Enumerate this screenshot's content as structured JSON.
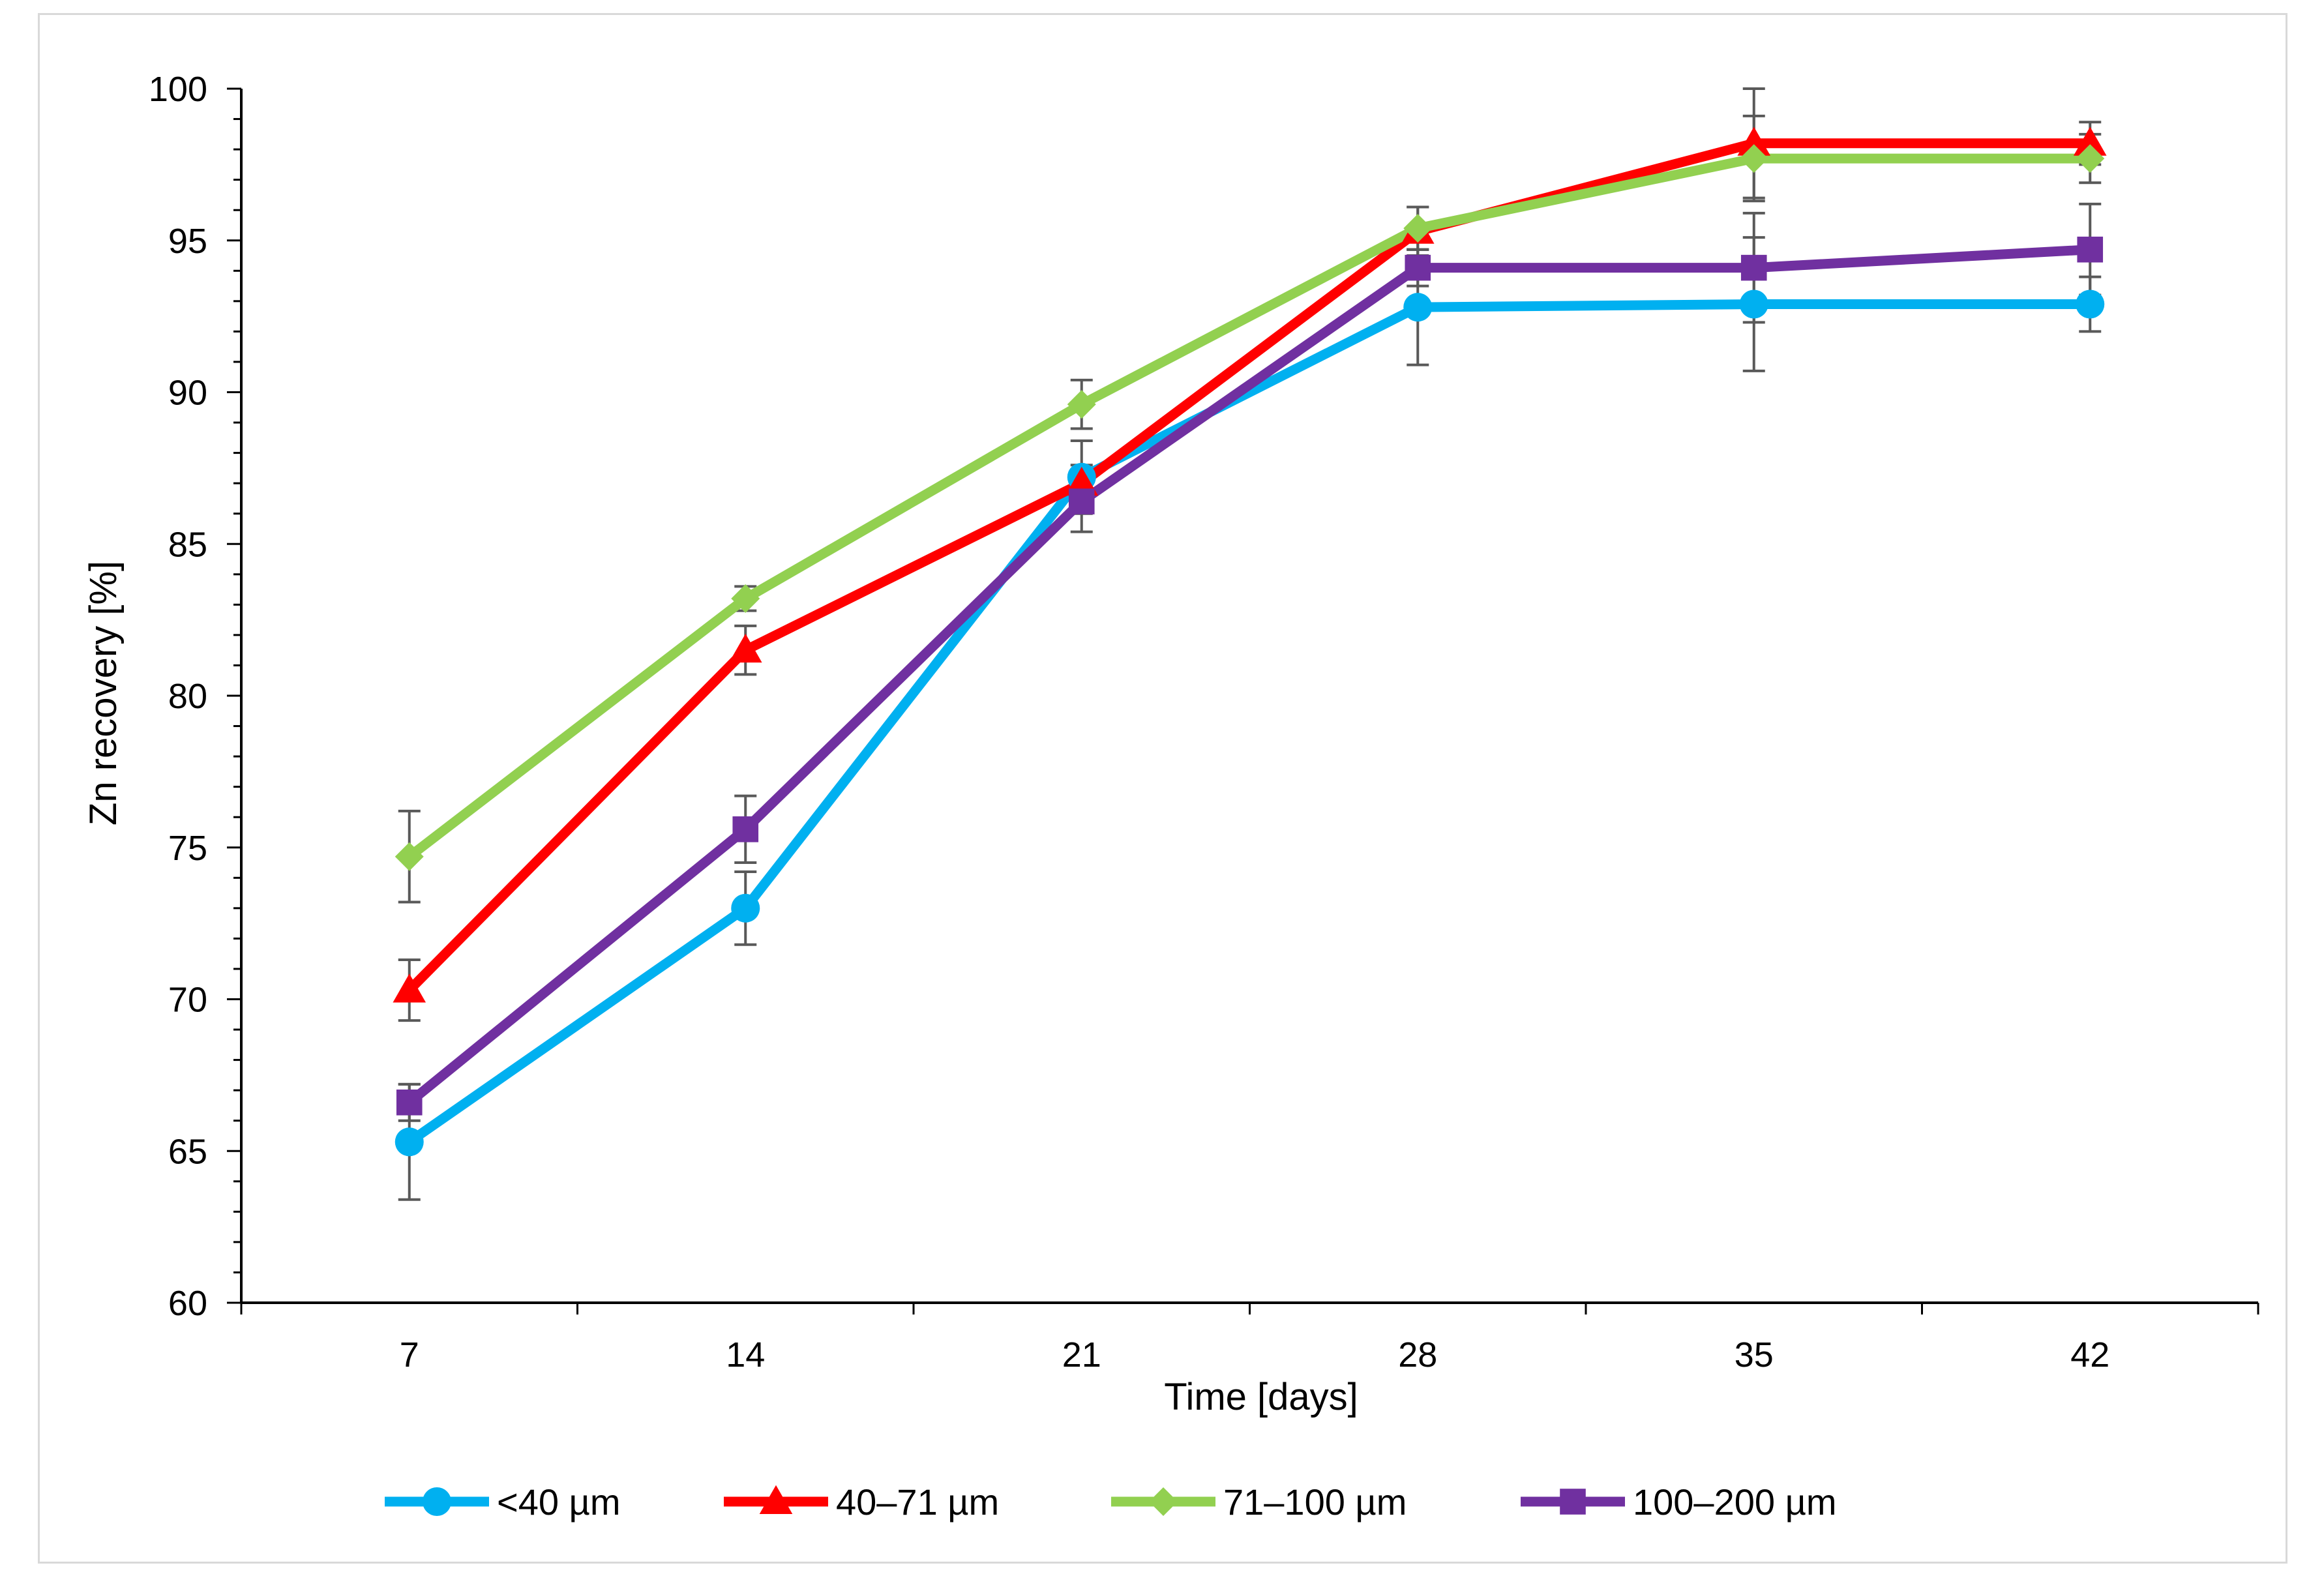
{
  "chart_data": {
    "type": "line",
    "title": "",
    "xlabel": "Time [days]",
    "ylabel": "Zn recovery [%]",
    "categories": [
      "7",
      "14",
      "21",
      "28",
      "35",
      "42"
    ],
    "x": [
      7,
      14,
      21,
      28,
      35,
      42
    ],
    "ylim": [
      60,
      100
    ],
    "yticks": [
      60,
      65,
      70,
      75,
      80,
      85,
      90,
      95,
      100
    ],
    "grid": false,
    "legend_position": "bottom",
    "series": [
      {
        "name": "<40 µm",
        "color": "#00b0f0",
        "marker": "circle",
        "values": [
          65.3,
          73.0,
          87.2,
          92.8,
          92.9,
          92.9
        ],
        "error": [
          1.9,
          1.2,
          1.2,
          1.9,
          2.2,
          0.9
        ]
      },
      {
        "name": "40–71 µm",
        "color": "#ff0000",
        "marker": "triangle",
        "values": [
          70.3,
          81.5,
          87.0,
          95.3,
          98.2,
          98.2
        ],
        "error": [
          1.0,
          0.8,
          0.6,
          0.8,
          1.8,
          0.7
        ]
      },
      {
        "name": "71–100 µm",
        "color": "#92d050",
        "marker": "diamond",
        "values": [
          74.7,
          83.2,
          89.6,
          95.4,
          97.7,
          97.7
        ],
        "error": [
          1.5,
          0.4,
          0.8,
          0.7,
          1.4,
          0.8
        ]
      },
      {
        "name": "100–200 µm",
        "color": "#7030a0",
        "marker": "square",
        "values": [
          66.6,
          75.6,
          86.4,
          94.1,
          94.1,
          94.7
        ],
        "error": [
          0.6,
          1.1,
          1.0,
          0.6,
          1.8,
          1.5
        ]
      }
    ]
  }
}
